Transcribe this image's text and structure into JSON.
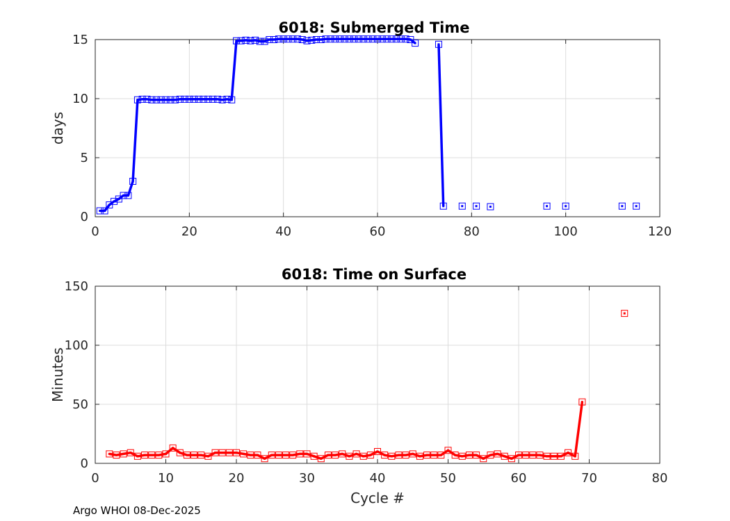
{
  "chart_data": [
    {
      "type": "line",
      "title": "6018: Submerged Time",
      "xlabel": "",
      "ylabel": "days",
      "xlim": [
        0,
        120
      ],
      "ylim": [
        0,
        15
      ],
      "xticks": [
        "0",
        "20",
        "40",
        "60",
        "80",
        "100",
        "120"
      ],
      "yticks": [
        "0",
        "5",
        "10",
        "15"
      ],
      "grid": true,
      "color": "#0000ff",
      "series": [
        {
          "points": [
            [
              1,
              0.5
            ],
            [
              2,
              0.5
            ],
            [
              3,
              1.0
            ],
            [
              4,
              1.3
            ],
            [
              5,
              1.5
            ],
            [
              6,
              1.8
            ],
            [
              7,
              1.8
            ],
            [
              8,
              3.0
            ],
            [
              9,
              9.9
            ],
            [
              10,
              9.95
            ],
            [
              11,
              9.95
            ],
            [
              12,
              9.9
            ],
            [
              13,
              9.9
            ],
            [
              14,
              9.9
            ],
            [
              15,
              9.9
            ],
            [
              16,
              9.9
            ],
            [
              17,
              9.9
            ],
            [
              18,
              9.95
            ],
            [
              19,
              9.95
            ],
            [
              20,
              9.95
            ],
            [
              21,
              9.95
            ],
            [
              22,
              9.95
            ],
            [
              23,
              9.95
            ],
            [
              24,
              9.95
            ],
            [
              25,
              9.95
            ],
            [
              26,
              9.95
            ],
            [
              27,
              9.9
            ],
            [
              28,
              9.95
            ],
            [
              29,
              9.9
            ],
            [
              30,
              14.9
            ],
            [
              31,
              14.9
            ],
            [
              32,
              14.95
            ],
            [
              33,
              14.9
            ],
            [
              34,
              14.95
            ],
            [
              35,
              14.85
            ],
            [
              36,
              14.85
            ],
            [
              37,
              15.0
            ],
            [
              38,
              15.0
            ],
            [
              39,
              15.05
            ],
            [
              40,
              15.05
            ],
            [
              41,
              15.05
            ],
            [
              42,
              15.05
            ],
            [
              43,
              15.05
            ],
            [
              44,
              15.0
            ],
            [
              45,
              14.9
            ],
            [
              46,
              14.95
            ],
            [
              47,
              15.0
            ],
            [
              48,
              15.0
            ],
            [
              49,
              15.05
            ],
            [
              50,
              15.05
            ],
            [
              51,
              15.05
            ],
            [
              52,
              15.05
            ],
            [
              53,
              15.05
            ],
            [
              54,
              15.05
            ],
            [
              55,
              15.05
            ],
            [
              56,
              15.05
            ],
            [
              57,
              15.05
            ],
            [
              58,
              15.05
            ],
            [
              59,
              15.05
            ],
            [
              60,
              15.05
            ],
            [
              61,
              15.05
            ],
            [
              62,
              15.05
            ],
            [
              63,
              15.05
            ],
            [
              64,
              15.05
            ],
            [
              65,
              15.05
            ],
            [
              66,
              15.05
            ],
            [
              67,
              15.0
            ],
            [
              68,
              14.7
            ],
            null,
            [
              73,
              14.6
            ],
            [
              74,
              0.9
            ],
            null,
            [
              78,
              0.9
            ],
            null,
            [
              81,
              0.9
            ],
            null,
            [
              84,
              0.85
            ],
            null,
            [
              96,
              0.9
            ],
            null,
            [
              100,
              0.9
            ],
            null,
            [
              112,
              0.9
            ],
            null,
            [
              115,
              0.9
            ]
          ]
        }
      ]
    },
    {
      "type": "line",
      "title": "6018: Time on Surface",
      "xlabel": "Cycle #",
      "ylabel": "Minutes",
      "xlim": [
        0,
        80
      ],
      "ylim": [
        0,
        150
      ],
      "xticks": [
        "0",
        "10",
        "20",
        "30",
        "40",
        "50",
        "60",
        "70",
        "80"
      ],
      "yticks": [
        "0",
        "50",
        "100",
        "150"
      ],
      "grid": true,
      "color": "#ff0000",
      "series": [
        {
          "points": [
            [
              2,
              8
            ],
            [
              3,
              7
            ],
            [
              4,
              8
            ],
            [
              5,
              9
            ],
            [
              6,
              6
            ],
            [
              7,
              7
            ],
            [
              8,
              7
            ],
            [
              9,
              7
            ],
            [
              10,
              8
            ],
            [
              11,
              13
            ],
            [
              12,
              9
            ],
            [
              13,
              7
            ],
            [
              14,
              7
            ],
            [
              15,
              7
            ],
            [
              16,
              6
            ],
            [
              17,
              9
            ],
            [
              18,
              9
            ],
            [
              19,
              9
            ],
            [
              20,
              9
            ],
            [
              21,
              8
            ],
            [
              22,
              7
            ],
            [
              23,
              7
            ],
            [
              24,
              4
            ],
            [
              25,
              7
            ],
            [
              26,
              7
            ],
            [
              27,
              7
            ],
            [
              28,
              7
            ],
            [
              29,
              8
            ],
            [
              30,
              8
            ],
            [
              31,
              6
            ],
            [
              32,
              4
            ],
            [
              33,
              7
            ],
            [
              34,
              7
            ],
            [
              35,
              8
            ],
            [
              36,
              6
            ],
            [
              37,
              8
            ],
            [
              38,
              6
            ],
            [
              39,
              7
            ],
            [
              40,
              10
            ],
            [
              41,
              7
            ],
            [
              42,
              6
            ],
            [
              43,
              7
            ],
            [
              44,
              7
            ],
            [
              45,
              8
            ],
            [
              46,
              6
            ],
            [
              47,
              7
            ],
            [
              48,
              7
            ],
            [
              49,
              7
            ],
            [
              50,
              11
            ],
            [
              51,
              7
            ],
            [
              52,
              6
            ],
            [
              53,
              7
            ],
            [
              54,
              7
            ],
            [
              55,
              4
            ],
            [
              56,
              7
            ],
            [
              57,
              8
            ],
            [
              58,
              6
            ],
            [
              59,
              4
            ],
            [
              60,
              7
            ],
            [
              61,
              7
            ],
            [
              62,
              7
            ],
            [
              63,
              7
            ],
            [
              64,
              6
            ],
            [
              65,
              6
            ],
            [
              66,
              6
            ],
            [
              67,
              9
            ],
            [
              68,
              6
            ],
            [
              69,
              52
            ],
            null,
            [
              75,
              127
            ]
          ]
        }
      ]
    }
  ],
  "footer": "Argo WHOI 08-Dec-2025"
}
